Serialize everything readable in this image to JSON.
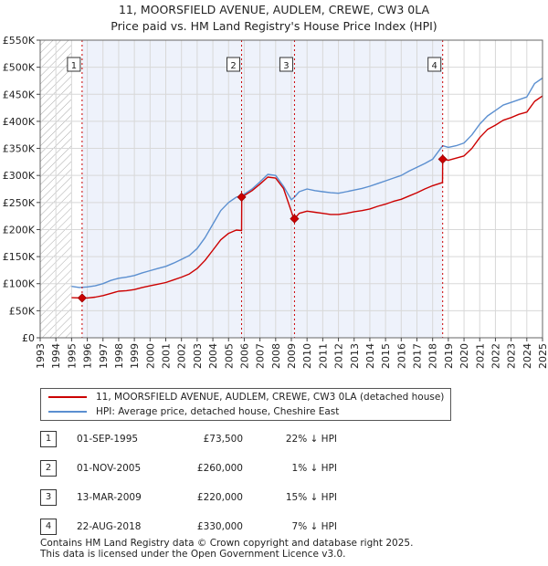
{
  "title_line1": "11, MOORSFIELD AVENUE, AUDLEM, CREWE, CW3 0LA",
  "title_line2": "Price paid vs. HM Land Registry's House Price Index (HPI)",
  "colors": {
    "price_paid": "#cc0000",
    "hpi": "#5b8fd0",
    "shade": "#eef2fb",
    "hatch": "#aaaaaa",
    "grid": "#d8d8d8"
  },
  "legend": {
    "price_paid": "11, MOORSFIELD AVENUE, AUDLEM, CREWE, CW3 0LA (detached house)",
    "hpi": "HPI: Average price, detached house, Cheshire East"
  },
  "sales": [
    {
      "num": "1",
      "date": "01-SEP-1995",
      "price": "£73,500",
      "hpi": "22% ↓ HPI"
    },
    {
      "num": "2",
      "date": "01-NOV-2005",
      "price": "£260,000",
      "hpi": "1% ↓ HPI"
    },
    {
      "num": "3",
      "date": "13-MAR-2009",
      "price": "£220,000",
      "hpi": "15% ↓ HPI"
    },
    {
      "num": "4",
      "date": "22-AUG-2018",
      "price": "£330,000",
      "hpi": "7% ↓ HPI"
    }
  ],
  "footer": {
    "line1": "Contains HM Land Registry data © Crown copyright and database right 2025.",
    "line2": "This data is licensed under the Open Government Licence v3.0."
  },
  "chart_data": {
    "type": "line",
    "title": "11, MOORSFIELD AVENUE, AUDLEM, CREWE, CW3 0LA — Price paid vs. HM Land Registry's House Price Index (HPI)",
    "xlabel": "",
    "ylabel": "",
    "xlim": [
      1993,
      2025
    ],
    "ylim": [
      0,
      550000
    ],
    "x_ticks": [
      "1993",
      "1994",
      "1995",
      "1996",
      "1997",
      "1998",
      "1999",
      "2000",
      "2001",
      "2002",
      "2003",
      "2004",
      "2005",
      "2006",
      "2007",
      "2008",
      "2009",
      "2010",
      "2011",
      "2012",
      "2013",
      "2014",
      "2015",
      "2016",
      "2017",
      "2018",
      "2019",
      "2020",
      "2021",
      "2022",
      "2023",
      "2024",
      "2025"
    ],
    "y_ticks": [
      {
        "value": 0,
        "label": "£0"
      },
      {
        "value": 50000,
        "label": "£50K"
      },
      {
        "value": 100000,
        "label": "£100K"
      },
      {
        "value": 150000,
        "label": "£150K"
      },
      {
        "value": 200000,
        "label": "£200K"
      },
      {
        "value": 250000,
        "label": "£250K"
      },
      {
        "value": 300000,
        "label": "£300K"
      },
      {
        "value": 350000,
        "label": "£350K"
      },
      {
        "value": 400000,
        "label": "£400K"
      },
      {
        "value": 450000,
        "label": "£450K"
      },
      {
        "value": 500000,
        "label": "£500K"
      },
      {
        "value": 550000,
        "label": "£550K"
      }
    ],
    "hatch_before": 1995,
    "shaded_from": 1995.67,
    "shaded_to": 2018.64,
    "grid": true,
    "series": [
      {
        "name": "HPI: Average price, detached house, Cheshire East",
        "x": [
          1995.0,
          1995.5,
          1996.0,
          1996.5,
          1997.0,
          1997.5,
          1998.0,
          1998.5,
          1999.0,
          1999.5,
          2000.0,
          2000.5,
          2001.0,
          2001.5,
          2002.0,
          2002.5,
          2003.0,
          2003.5,
          2004.0,
          2004.5,
          2005.0,
          2005.5,
          2005.83,
          2006.5,
          2007.0,
          2007.5,
          2008.0,
          2008.5,
          2009.0,
          2009.2,
          2009.5,
          2010.0,
          2010.5,
          2011.0,
          2011.5,
          2012.0,
          2012.5,
          2013.0,
          2013.5,
          2014.0,
          2014.5,
          2015.0,
          2015.5,
          2016.0,
          2016.5,
          2017.0,
          2017.5,
          2018.0,
          2018.64,
          2019.0,
          2019.5,
          2020.0,
          2020.5,
          2021.0,
          2021.5,
          2022.0,
          2022.5,
          2023.0,
          2023.5,
          2024.0,
          2024.5,
          2025.0
        ],
        "y": [
          95000,
          93000,
          94000,
          96000,
          100000,
          106000,
          110000,
          112000,
          115000,
          120000,
          124000,
          128000,
          132000,
          138000,
          145000,
          152000,
          165000,
          185000,
          210000,
          235000,
          250000,
          260000,
          262000,
          275000,
          288000,
          302000,
          300000,
          280000,
          255000,
          260000,
          270000,
          275000,
          272000,
          270000,
          268000,
          267000,
          270000,
          273000,
          276000,
          280000,
          285000,
          290000,
          295000,
          300000,
          308000,
          315000,
          322000,
          330000,
          355000,
          352000,
          355000,
          360000,
          375000,
          395000,
          410000,
          420000,
          430000,
          435000,
          440000,
          445000,
          470000,
          480000
        ]
      },
      {
        "name": "11, MOORSFIELD AVENUE, AUDLEM, CREWE, CW3 0LA (detached house)",
        "x": [
          1995.0,
          1995.67,
          1996.0,
          1996.5,
          1997.0,
          1997.5,
          1998.0,
          1998.5,
          1999.0,
          1999.5,
          2000.0,
          2000.5,
          2001.0,
          2001.5,
          2002.0,
          2002.5,
          2003.0,
          2003.5,
          2004.0,
          2004.5,
          2005.0,
          2005.5,
          2005.83,
          2005.84,
          2006.5,
          2007.0,
          2007.5,
          2008.0,
          2008.5,
          2009.19,
          2009.2,
          2009.5,
          2010.0,
          2010.5,
          2011.0,
          2011.5,
          2012.0,
          2012.5,
          2013.0,
          2013.5,
          2014.0,
          2014.5,
          2015.0,
          2015.5,
          2016.0,
          2016.5,
          2017.0,
          2017.5,
          2018.0,
          2018.63,
          2018.64,
          2019.0,
          2019.5,
          2020.0,
          2020.5,
          2021.0,
          2021.5,
          2022.0,
          2022.5,
          2023.0,
          2023.5,
          2024.0,
          2024.5,
          2025.0
        ],
        "y": [
          74000,
          73500,
          73500,
          75000,
          78000,
          82000,
          86000,
          87000,
          89000,
          93000,
          96000,
          99000,
          102000,
          107000,
          112000,
          118000,
          128000,
          143000,
          162000,
          181000,
          193000,
          199000,
          198000,
          260000,
          272000,
          284000,
          297000,
          295000,
          276000,
          217000,
          220000,
          230000,
          234000,
          232000,
          230000,
          228000,
          228000,
          230000,
          233000,
          235000,
          238000,
          243000,
          247000,
          252000,
          256000,
          262000,
          268000,
          275000,
          281000,
          287000,
          330000,
          328000,
          332000,
          336000,
          350000,
          370000,
          385000,
          393000,
          402000,
          407000,
          413000,
          417000,
          437000,
          447000
        ]
      }
    ],
    "sale_points": [
      {
        "label": "1",
        "x": 1995.67,
        "y": 73500
      },
      {
        "label": "2",
        "x": 2005.83,
        "y": 260000
      },
      {
        "label": "3",
        "x": 2009.2,
        "y": 220000
      },
      {
        "label": "4",
        "x": 2018.64,
        "y": 330000
      }
    ]
  }
}
